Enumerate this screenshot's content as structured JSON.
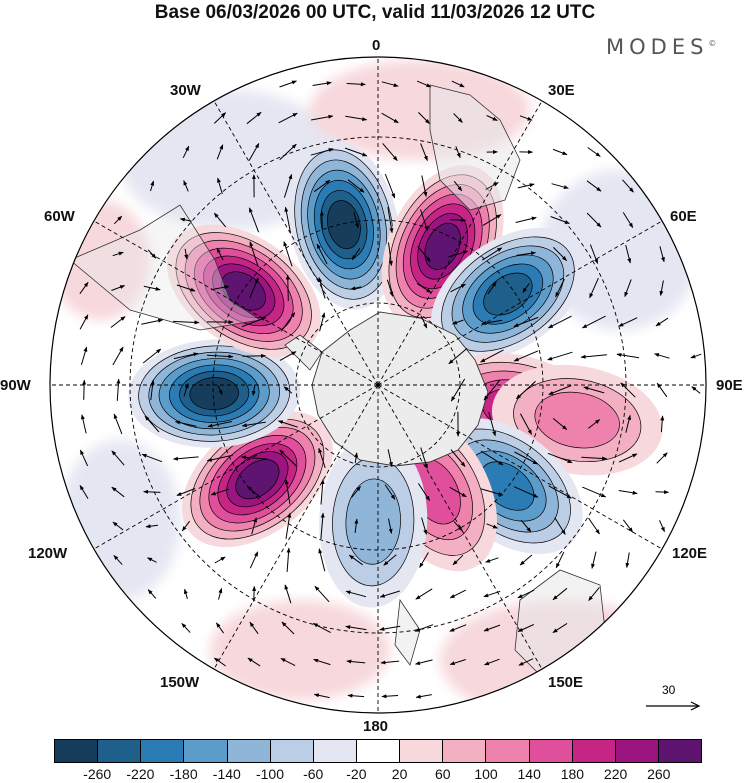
{
  "title": "Base 06/03/2026 00 UTC, valid 11/03/2026 12 UTC",
  "brand": "MODES",
  "brand_mark": "©",
  "longitude_labels": {
    "n0": "0",
    "e30": "30E",
    "e60": "60E",
    "e90": "90E",
    "e120": "120E",
    "e150": "150E",
    "s180": "180",
    "w150": "150W",
    "w120": "120W",
    "w90": "90W",
    "w60": "60W",
    "w30": "30W"
  },
  "reference_vector": {
    "value": "30"
  },
  "colorbar": {
    "colors": [
      "#163d5c",
      "#1f5f8b",
      "#2b7cb4",
      "#5c9ccb",
      "#8fb5d8",
      "#bccde6",
      "#e4e6f2",
      "#ffffff",
      "#f7d8dc",
      "#f4b0c3",
      "#ef82ad",
      "#e04f9b",
      "#c62586",
      "#9c1480",
      "#5e1470"
    ],
    "ticks": [
      "-260",
      "-220",
      "-180",
      "-140",
      "-100",
      "-60",
      "-20",
      "20",
      "60",
      "100",
      "140",
      "180",
      "220",
      "260"
    ]
  },
  "anomaly_cells": [
    {
      "name": "blue-cell-atlantic",
      "lon": -12,
      "colat": 30,
      "v": -280
    },
    {
      "name": "pink-cell-southern-africa",
      "lon": 25,
      "colat": 28,
      "v": 280
    },
    {
      "name": "blue-cell-indian-west",
      "lon": 55,
      "colat": 29,
      "v": -250
    },
    {
      "name": "pink-cell-indian",
      "lon": 100,
      "colat": 25,
      "v": 200
    },
    {
      "name": "pink-cell-indian-east",
      "lon": 100,
      "colat": 37,
      "v": 110
    },
    {
      "name": "blue-cell-australia-south",
      "lon": 128,
      "colat": 30,
      "v": -180
    },
    {
      "name": "pink-cell-tasman",
      "lon": 152,
      "colat": 22,
      "v": 160
    },
    {
      "name": "blue-cell-south-pacific",
      "lon": -178,
      "colat": 25,
      "v": -100
    },
    {
      "name": "pink-cell-east-pacific",
      "lon": -128,
      "colat": 28,
      "v": 260
    },
    {
      "name": "blue-cell-southeast-pacific",
      "lon": -93,
      "colat": 30,
      "v": -270
    },
    {
      "name": "pink-cell-south-america",
      "lon": -55,
      "colat": 30,
      "v": 270
    }
  ]
}
